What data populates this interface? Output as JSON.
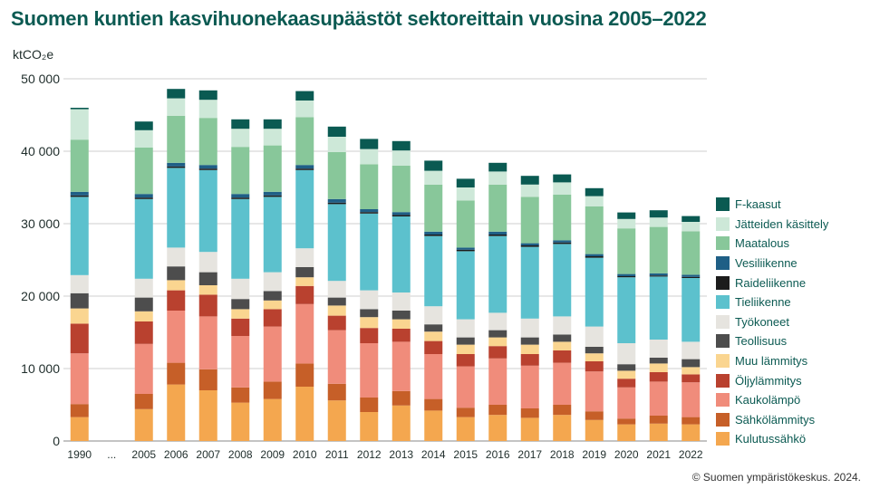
{
  "title": "Suomen kuntien kasvihuonekaasupäästöt sektoreittain vuosina 2005–2022",
  "unit_label": "ktCO₂e",
  "credit": "© Suomen ympäristökeskus. 2024.",
  "chart_data": {
    "type": "bar",
    "stacked": true,
    "title": "Suomen kuntien kasvihuonekaasupäästöt sektoreittain vuosina 2005–2022",
    "ylabel": "ktCO₂e",
    "ylim": [
      0,
      50000
    ],
    "yticks": [
      0,
      10000,
      20000,
      30000,
      40000,
      50000
    ],
    "ytick_labels": [
      "0",
      "10 000",
      "20 000",
      "30 000",
      "40 000",
      "50 000"
    ],
    "grid": true,
    "legend_position": "right",
    "categories": [
      "1990",
      "...",
      "2005",
      "2006",
      "2007",
      "2008",
      "2009",
      "2010",
      "2011",
      "2012",
      "2013",
      "2014",
      "2015",
      "2016",
      "2017",
      "2018",
      "2019",
      "2020",
      "2021",
      "2022"
    ],
    "series": [
      {
        "name": "Kulutussähkö",
        "color": "#f4a74f",
        "values": [
          3300,
          null,
          4400,
          7800,
          7000,
          5300,
          5800,
          7500,
          5600,
          4000,
          4900,
          4200,
          3300,
          3600,
          3200,
          3600,
          2900,
          2300,
          2400,
          2300
        ]
      },
      {
        "name": "Sähkölämmitys",
        "color": "#c65f28",
        "values": [
          1800,
          null,
          2100,
          3000,
          2900,
          2100,
          2400,
          3200,
          2300,
          2000,
          2000,
          1600,
          1300,
          1400,
          1300,
          1400,
          1200,
          800,
          1100,
          1000
        ]
      },
      {
        "name": "Kaukolämpö",
        "color": "#f08c7b",
        "values": [
          7000,
          null,
          6900,
          7200,
          7300,
          7100,
          7600,
          8200,
          7400,
          7500,
          6800,
          6200,
          5700,
          6400,
          5900,
          5800,
          5500,
          4300,
          4700,
          4800
        ]
      },
      {
        "name": "Öljylämmitys",
        "color": "#b9412f",
        "values": [
          4100,
          null,
          3100,
          2800,
          3000,
          2400,
          2400,
          2500,
          2000,
          2100,
          1800,
          1800,
          1700,
          1700,
          1600,
          1700,
          1400,
          1200,
          1300,
          1100
        ]
      },
      {
        "name": "Muu lämmitys",
        "color": "#fad590",
        "values": [
          2100,
          null,
          1400,
          1400,
          1300,
          1300,
          1200,
          1200,
          1400,
          1500,
          1300,
          1300,
          1300,
          1200,
          1300,
          1200,
          1100,
          1100,
          1200,
          1000
        ]
      },
      {
        "name": "Teollisuus",
        "color": "#4d4d4d",
        "values": [
          2100,
          null,
          1900,
          1900,
          1800,
          1400,
          1300,
          1400,
          1100,
          1100,
          1200,
          1000,
          1000,
          1000,
          1000,
          1000,
          900,
          900,
          800,
          1100
        ]
      },
      {
        "name": "Työkoneet",
        "color": "#e6e4df",
        "values": [
          2500,
          null,
          2600,
          2600,
          2800,
          2800,
          2600,
          2600,
          2300,
          2600,
          2500,
          2500,
          2500,
          2400,
          2600,
          2500,
          2800,
          2900,
          2500,
          2400
        ]
      },
      {
        "name": "Tieliikenne",
        "color": "#5cc1cd",
        "values": [
          10800,
          null,
          11000,
          11000,
          11300,
          11000,
          10400,
          10800,
          10600,
          10600,
          10500,
          9700,
          9400,
          10600,
          9900,
          10000,
          9500,
          9100,
          8700,
          8800
        ]
      },
      {
        "name": "Raideliikenne",
        "color": "#1c1c1c",
        "values": [
          200,
          null,
          200,
          200,
          200,
          200,
          200,
          200,
          200,
          200,
          200,
          200,
          200,
          200,
          200,
          200,
          200,
          150,
          150,
          150
        ]
      },
      {
        "name": "Vesiliikenne",
        "color": "#1f5f86",
        "values": [
          500,
          null,
          500,
          500,
          500,
          500,
          500,
          500,
          500,
          400,
          400,
          400,
          300,
          400,
          300,
          300,
          300,
          300,
          300,
          300
        ]
      },
      {
        "name": "Maatalous",
        "color": "#88c79a",
        "values": [
          7200,
          null,
          6400,
          6500,
          6500,
          6500,
          6400,
          6600,
          6500,
          6200,
          6400,
          6500,
          6500,
          6500,
          6400,
          6300,
          6600,
          6300,
          6400,
          6000
        ]
      },
      {
        "name": "Jätteiden käsittely",
        "color": "#cde8d8",
        "values": [
          4200,
          null,
          2400,
          2400,
          2500,
          2500,
          2300,
          2300,
          2100,
          2100,
          2100,
          1900,
          1800,
          1800,
          1700,
          1700,
          1400,
          1300,
          1300,
          1300
        ]
      },
      {
        "name": "F-kaasut",
        "color": "#0a5a52",
        "values": [
          200,
          null,
          1200,
          1300,
          1300,
          1300,
          1300,
          1300,
          1400,
          1400,
          1300,
          1400,
          1200,
          1200,
          1200,
          1100,
          1100,
          900,
          1000,
          800
        ]
      }
    ]
  }
}
